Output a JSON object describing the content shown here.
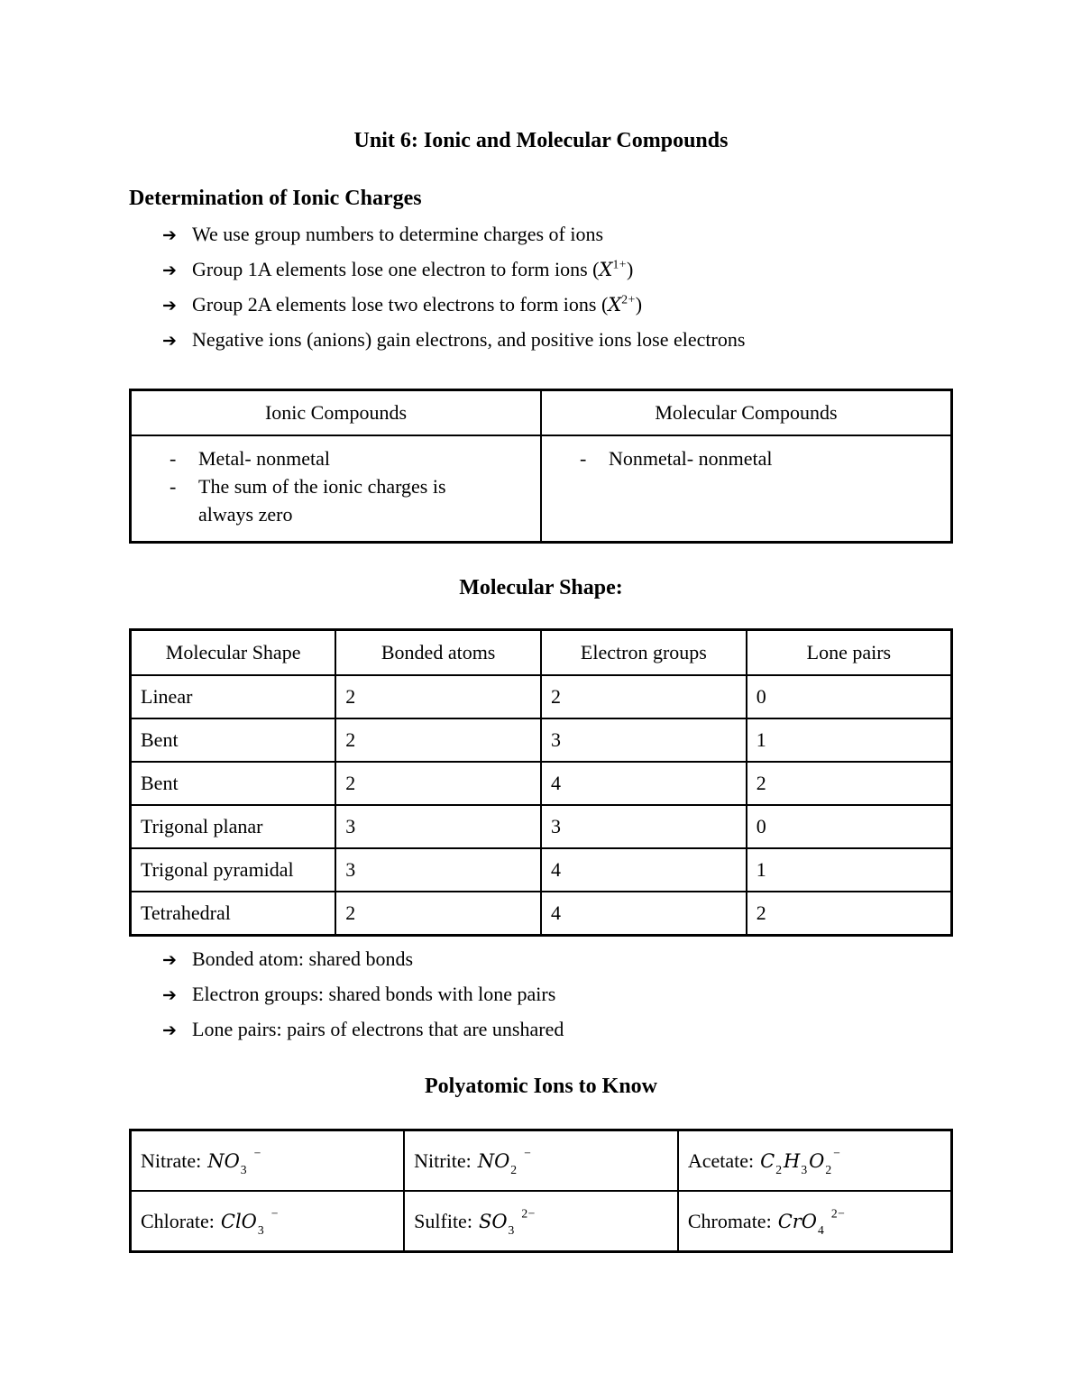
{
  "page": {
    "title": "Unit 6: Ionic and Molecular Compounds"
  },
  "glyphs": {
    "arrow": "➔",
    "dash": "-"
  },
  "section1": {
    "heading": "Determination of Ionic Charges",
    "bullets": [
      {
        "text": "We use group numbers to determine charges of ions"
      },
      {
        "pre": "Group 1A elements lose one electron to form ions (",
        "var": "X",
        "sup": "1+",
        "post": ")"
      },
      {
        "pre": "Group 2A elements lose two electrons to form ions (",
        "var": "X",
        "sup": "2+",
        "post": ")"
      },
      {
        "text": "Negative ions (anions) gain electrons, and positive ions lose electrons"
      }
    ]
  },
  "compare_table": {
    "headers": [
      "Ionic Compounds",
      "Molecular Compounds"
    ],
    "ionic_items": [
      "Metal- nonmetal",
      "The sum of the ionic charges is always zero"
    ],
    "molecular_items": [
      "Nonmetal- nonmetal"
    ]
  },
  "shape_section": {
    "heading": "Molecular Shape:",
    "table": {
      "headers": [
        "Molecular Shape",
        "Bonded atoms",
        "Electron groups",
        "Lone pairs"
      ],
      "rows": [
        [
          "Linear",
          "2",
          "2",
          "0"
        ],
        [
          "Bent",
          "2",
          "3",
          "1"
        ],
        [
          "Bent",
          "2",
          "4",
          "2"
        ],
        [
          "Trigonal planar",
          "3",
          "3",
          "0"
        ],
        [
          "Trigonal pyramidal",
          "3",
          "4",
          "1"
        ],
        [
          "Tetrahedral",
          "2",
          "4",
          "2"
        ]
      ]
    },
    "bullets": [
      "Bonded atom: shared bonds",
      "Electron groups: shared bonds with lone pairs",
      "Lone pairs: pairs of electrons that are unshared"
    ]
  },
  "polyatomic": {
    "heading": "Polyatomic Ions to Know",
    "cells": [
      {
        "label": "Nitrate:",
        "b1": "NO",
        "s1": "3",
        "sup": "−"
      },
      {
        "label": "Nitrite:",
        "b1": "NO",
        "s1": "2",
        "sup": "−"
      },
      {
        "label": "Acetate:",
        "b1": "C",
        "s1": "2",
        "b2": "H",
        "s2": "3",
        "b3": "O",
        "s3": "2",
        "sup": "−"
      },
      {
        "label": "Chlorate:",
        "b1": "ClO",
        "s1": "3",
        "sup": "−"
      },
      {
        "label": "Sulfite:",
        "b1": "SO",
        "s1": "3",
        "sup": "2−"
      },
      {
        "label": "Chromate:",
        "b1": "CrO",
        "s1": "4",
        "sup": "2−"
      }
    ]
  },
  "colors": {
    "text": "#000000",
    "background": "#ffffff",
    "border": "#000000"
  }
}
